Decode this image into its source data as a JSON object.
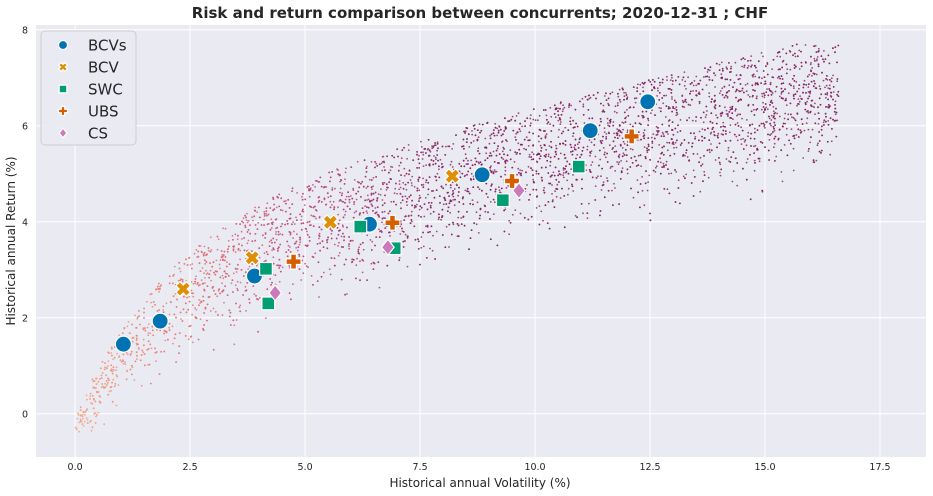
{
  "chart_data": {
    "type": "scatter",
    "title": "Risk and return comparison between concurrents; 2020-12-31 ; CHF",
    "xlabel": "Historical annual Volatility (%)",
    "ylabel": "Historical annual Return (%)",
    "xlim": [
      -0.85,
      18.5
    ],
    "ylim": [
      -0.9,
      8.1
    ],
    "xticks": [
      "0.0",
      "2.5",
      "5.0",
      "7.5",
      "10.0",
      "12.5",
      "15.0",
      "17.5"
    ],
    "xtick_values": [
      0,
      2.5,
      5,
      7.5,
      10,
      12.5,
      15,
      17.5
    ],
    "yticks": [
      "0",
      "2",
      "4",
      "6",
      "8"
    ],
    "ytick_values": [
      0,
      2,
      4,
      6,
      8
    ],
    "grid": true,
    "legend_position": "top-left",
    "background": "#eaeaf2",
    "background_cloud": {
      "description_colors": [
        "#f4a582",
        "#e07070",
        "#b6417d",
        "#7a1f5c"
      ],
      "x_range": [
        0,
        17.6
      ],
      "y_range": [
        -0.5,
        7.7
      ]
    },
    "series": [
      {
        "name": "BCVs",
        "marker": "circle",
        "color": "#0173b2",
        "points": [
          [
            1.05,
            1.45
          ],
          [
            1.85,
            1.93
          ],
          [
            3.9,
            2.87
          ],
          [
            6.4,
            3.95
          ],
          [
            8.85,
            4.98
          ],
          [
            11.2,
            5.9
          ],
          [
            12.45,
            6.5
          ]
        ]
      },
      {
        "name": "BCV",
        "marker": "x",
        "color": "#de8f05",
        "points": [
          [
            2.35,
            2.6
          ],
          [
            3.85,
            3.25
          ],
          [
            5.55,
            3.99
          ],
          [
            8.2,
            4.95
          ]
        ]
      },
      {
        "name": "SWC",
        "marker": "square",
        "color": "#029e73",
        "points": [
          [
            4.15,
            3.02
          ],
          [
            4.2,
            2.3
          ],
          [
            6.2,
            3.9
          ],
          [
            6.95,
            3.45
          ],
          [
            9.3,
            4.45
          ],
          [
            10.95,
            5.15
          ]
        ]
      },
      {
        "name": "UBS",
        "marker": "plus",
        "color": "#d55e00",
        "points": [
          [
            4.75,
            3.17
          ],
          [
            6.9,
            3.98
          ],
          [
            9.5,
            4.85
          ],
          [
            12.1,
            5.78
          ]
        ]
      },
      {
        "name": "CS",
        "marker": "diamond",
        "color": "#cc78bc",
        "points": [
          [
            4.35,
            2.52
          ],
          [
            6.8,
            3.47
          ],
          [
            9.65,
            4.65
          ]
        ]
      }
    ]
  }
}
